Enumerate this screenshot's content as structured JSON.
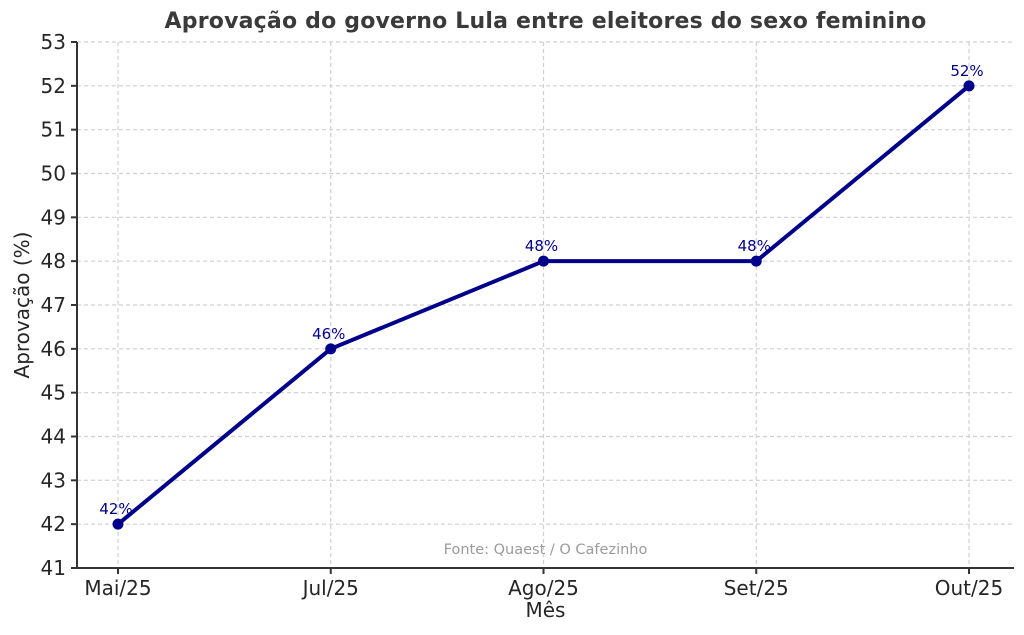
{
  "chart_data": {
    "type": "line",
    "title": "Aprovação do governo Lula entre eleitores do sexo feminino",
    "xlabel": "Mês",
    "ylabel": "Aprovação (%)",
    "categories": [
      "Mai/25",
      "Jul/25",
      "Ago/25",
      "Set/25",
      "Out/25"
    ],
    "series": [
      {
        "name": "Aprovação",
        "values": [
          42,
          46,
          48,
          48,
          52
        ]
      }
    ],
    "point_labels": [
      "42%",
      "46%",
      "48%",
      "48%",
      "52%"
    ],
    "ylim": [
      41,
      53
    ],
    "yticks": [
      41,
      42,
      43,
      44,
      45,
      46,
      47,
      48,
      49,
      50,
      51,
      52,
      53
    ],
    "grid": true,
    "legend_position": "none",
    "source_note": "Fonte: Quaest / O Cafezinho",
    "colors": {
      "line": "#00008B",
      "marker": "#00008B",
      "point_label": "#00008B",
      "title": "#3a3a3a",
      "tick_label": "#262626",
      "axis_label": "#262626",
      "spine": "#333333",
      "grid": "#d0d0d0",
      "source": "#9b9b9b",
      "background": "#ffffff"
    }
  }
}
